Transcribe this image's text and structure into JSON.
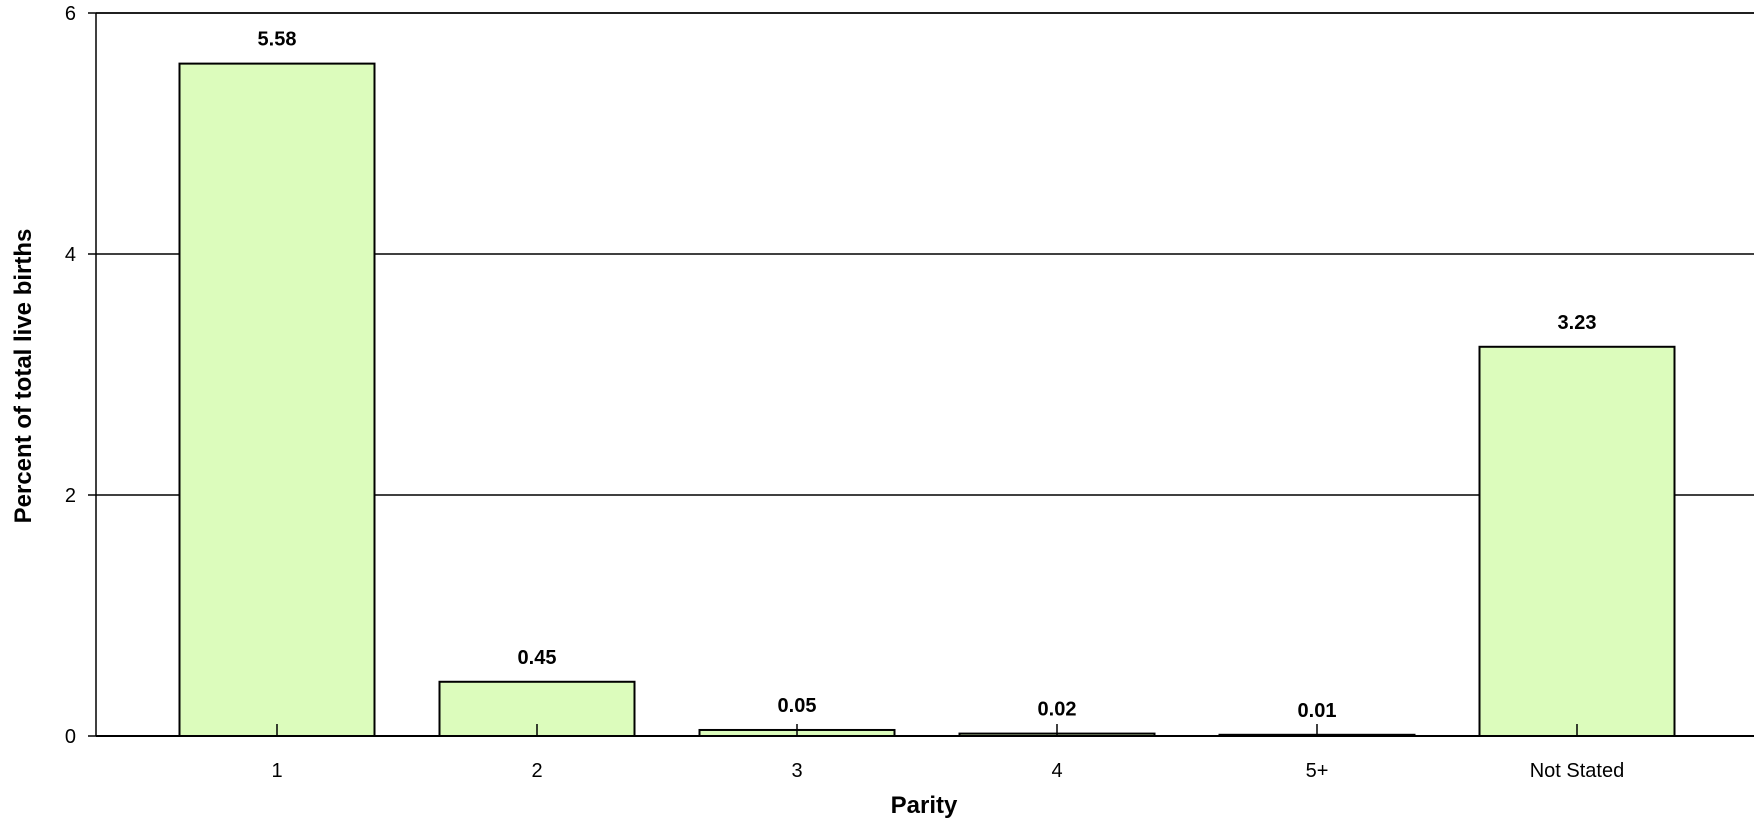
{
  "chart_data": {
    "type": "bar",
    "title": "",
    "xlabel": "Parity",
    "ylabel": "Percent of total live births",
    "categories": [
      "1",
      "2",
      "3",
      "4",
      "5+",
      "Not Stated"
    ],
    "values": [
      5.58,
      0.45,
      0.05,
      0.02,
      0.01,
      3.23
    ],
    "data_labels": [
      "5.58",
      "0.45",
      "0.05",
      "0.02",
      "0.01",
      "3.23"
    ],
    "ylim": [
      0,
      6
    ],
    "yticks": [
      0,
      2,
      4,
      6
    ],
    "ytick_labels": [
      "0",
      "2",
      "4",
      "6"
    ],
    "grid": true,
    "legend": "none",
    "bar_color": "#dcfcbc",
    "bar_edge_color": "#000000"
  }
}
